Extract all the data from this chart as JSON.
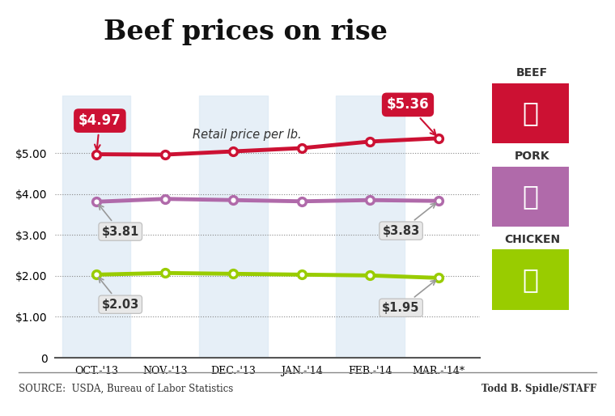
{
  "title": "Beef prices on rise",
  "subtitle": "Retail price per lb.",
  "categories": [
    "OCT.-'13",
    "NOV.-'13",
    "DEC.-'13",
    "JAN.-'14",
    "FEB.-'14",
    "MAR.-'14*"
  ],
  "beef": [
    4.97,
    4.96,
    5.04,
    5.12,
    5.28,
    5.36
  ],
  "pork": [
    3.81,
    3.88,
    3.85,
    3.82,
    3.85,
    3.83
  ],
  "chicken": [
    2.03,
    2.07,
    2.05,
    2.03,
    2.01,
    1.95
  ],
  "beef_color": "#cc1133",
  "pork_color": "#b06aaa",
  "chicken_color": "#99cc00",
  "beef_label_start": "$4.97",
  "beef_label_end": "$5.36",
  "pork_label_start": "$3.81",
  "pork_label_end": "$3.83",
  "chicken_label_start": "$2.03",
  "chicken_label_end": "$1.95",
  "source_text": "SOURCE:  USDA, Bureau of Labor Statistics",
  "credit_text": "Todd B. Spidle/STAFF",
  "ylim": [
    0,
    6.4
  ],
  "yticks": [
    0,
    1.0,
    2.0,
    3.0,
    4.0,
    5.0
  ],
  "background_color": "#ffffff",
  "stripe_color": "#dce9f5"
}
